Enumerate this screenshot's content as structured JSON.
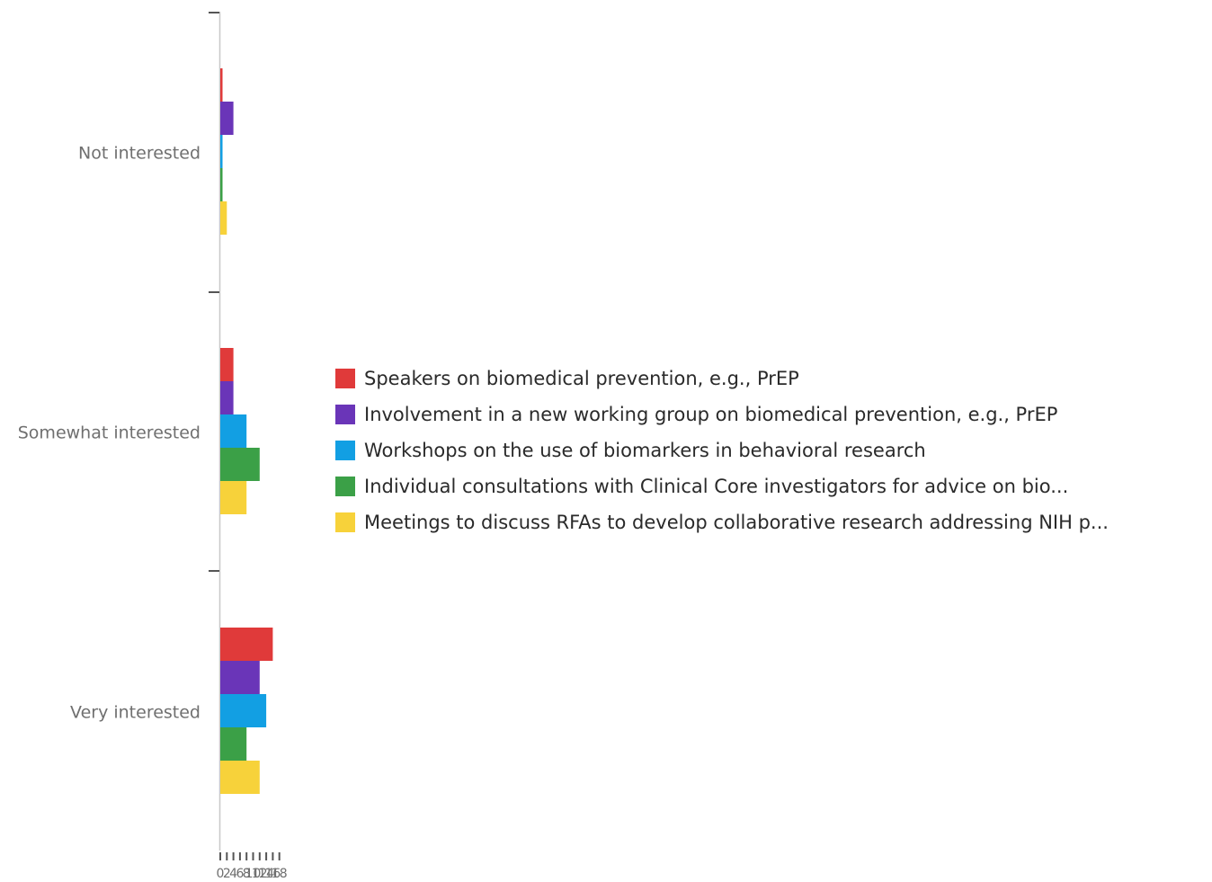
{
  "chart_data": {
    "type": "bar",
    "orientation": "horizontal",
    "categories": [
      "Not interested",
      "Somewhat interested",
      "Very interested"
    ],
    "series": [
      {
        "name": "Speakers on biomedical prevention, e.g., PrEP",
        "color": "#e03a3a",
        "values": [
          0,
          2,
          8
        ]
      },
      {
        "name": "Involvement in a new working group on biomedical prevention, e.g., PrEP",
        "color": "#6a35b8",
        "values": [
          2,
          2,
          6
        ]
      },
      {
        "name": "Workshops on the use of biomarkers in behavioral research",
        "color": "#129fe3",
        "values": [
          0,
          4,
          7
        ]
      },
      {
        "name": "Individual consultations with Clinical Core investigators for advice on bio...",
        "color": "#3ba047",
        "values": [
          0,
          6,
          4
        ]
      },
      {
        "name": "Meetings to discuss RFAs to develop collaborative research addressing NIH p...",
        "color": "#f7d23a",
        "values": [
          1,
          4,
          6
        ]
      }
    ],
    "x_ticks": [
      "0",
      "2",
      "4",
      "6",
      "8",
      "10",
      "12",
      "14",
      "16",
      "18"
    ],
    "xlim": [
      0,
      18
    ],
    "grid": false,
    "legend_position": "right"
  }
}
